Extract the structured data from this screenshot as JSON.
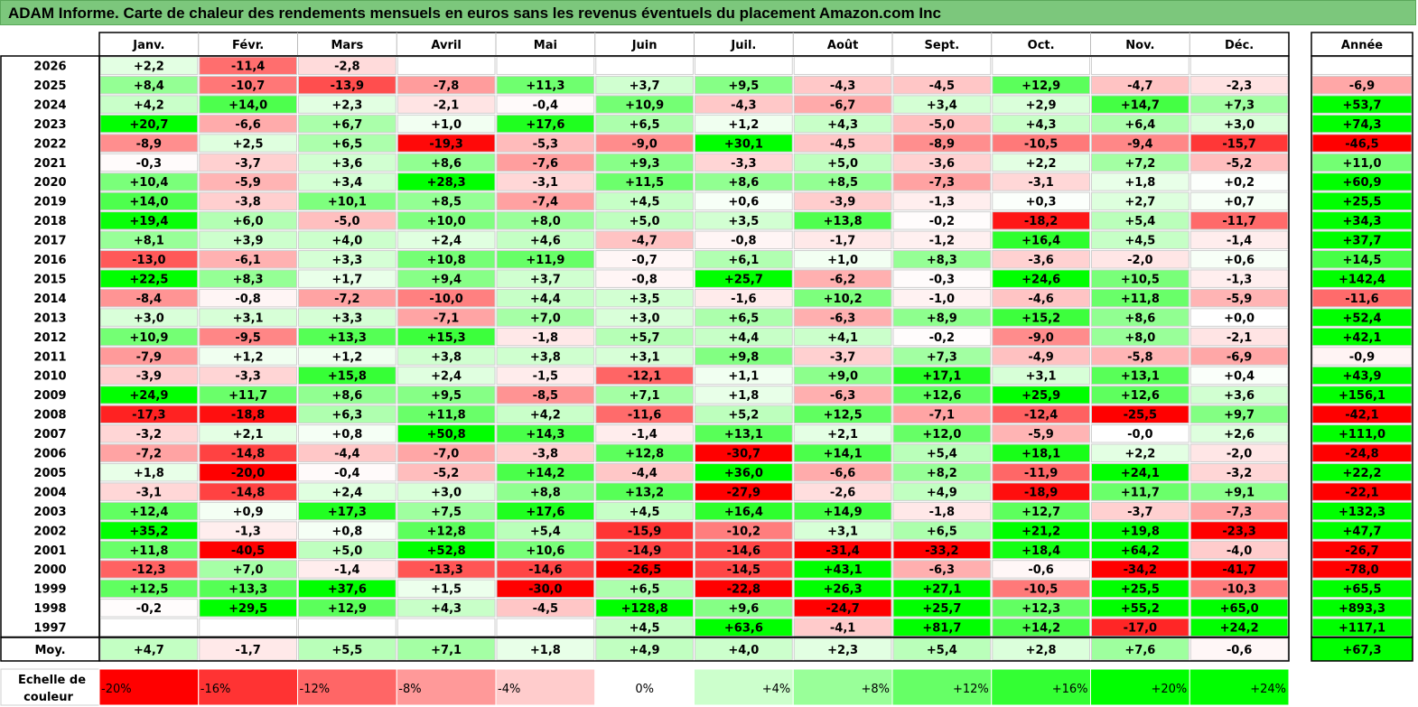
{
  "title": "ADAM Informe. Carte de chaleur des rendements mensuels en euros sans les revenus éventuels du placement Amazon.com Inc",
  "chart_data": {
    "type": "heatmap",
    "months": [
      "Janv.",
      "Févr.",
      "Mars",
      "Avril",
      "Mai",
      "Juin",
      "Juil.",
      "Août",
      "Sept.",
      "Oct.",
      "Nov.",
      "Déc."
    ],
    "year_header": "Année",
    "rows": [
      {
        "label": "2026",
        "values": [
          "+2,2",
          "-11,4",
          "-2,8",
          null,
          null,
          null,
          null,
          null,
          null,
          null,
          null,
          null
        ],
        "year": null
      },
      {
        "label": "2025",
        "values": [
          "+8,4",
          "-10,7",
          "-13,9",
          "-7,8",
          "+11,3",
          "+3,7",
          "+9,5",
          "-4,3",
          "-4,5",
          "+12,9",
          "-4,7",
          "-2,3"
        ],
        "year": "-6,9"
      },
      {
        "label": "2024",
        "values": [
          "+4,2",
          "+14,0",
          "+2,3",
          "-2,1",
          "-0,4",
          "+10,9",
          "-4,3",
          "-6,7",
          "+3,4",
          "+2,9",
          "+14,7",
          "+7,3"
        ],
        "year": "+53,7"
      },
      {
        "label": "2023",
        "values": [
          "+20,7",
          "-6,6",
          "+6,7",
          "+1,0",
          "+17,6",
          "+6,5",
          "+1,2",
          "+4,3",
          "-5,0",
          "+4,3",
          "+6,4",
          "+3,0"
        ],
        "year": "+74,3"
      },
      {
        "label": "2022",
        "values": [
          "-8,9",
          "+2,5",
          "+6,5",
          "-19,3",
          "-5,3",
          "-9,0",
          "+30,1",
          "-4,5",
          "-8,9",
          "-10,5",
          "-9,4",
          "-15,7"
        ],
        "year": "-46,5"
      },
      {
        "label": "2021",
        "values": [
          "-0,3",
          "-3,7",
          "+3,6",
          "+8,6",
          "-7,6",
          "+9,3",
          "-3,3",
          "+5,0",
          "-3,6",
          "+2,2",
          "+7,2",
          "-5,2"
        ],
        "year": "+11,0"
      },
      {
        "label": "2020",
        "values": [
          "+10,4",
          "-5,9",
          "+3,4",
          "+28,3",
          "-3,1",
          "+11,5",
          "+8,6",
          "+8,5",
          "-7,3",
          "-3,1",
          "+1,8",
          "+0,2"
        ],
        "year": "+60,9"
      },
      {
        "label": "2019",
        "values": [
          "+14,0",
          "-3,8",
          "+10,1",
          "+8,5",
          "-7,4",
          "+4,5",
          "+0,6",
          "-3,9",
          "-1,3",
          "+0,3",
          "+2,7",
          "+0,7"
        ],
        "year": "+25,5"
      },
      {
        "label": "2018",
        "values": [
          "+19,4",
          "+6,0",
          "-5,0",
          "+10,0",
          "+8,0",
          "+5,0",
          "+3,5",
          "+13,8",
          "-0,2",
          "-18,2",
          "+5,4",
          "-11,7"
        ],
        "year": "+34,3"
      },
      {
        "label": "2017",
        "values": [
          "+8,1",
          "+3,9",
          "+4,0",
          "+2,4",
          "+4,6",
          "-4,7",
          "-0,8",
          "-1,7",
          "-1,2",
          "+16,4",
          "+4,5",
          "-1,4"
        ],
        "year": "+37,7"
      },
      {
        "label": "2016",
        "values": [
          "-13,0",
          "-6,1",
          "+3,3",
          "+10,8",
          "+11,9",
          "-0,7",
          "+6,1",
          "+1,0",
          "+8,3",
          "-3,6",
          "-2,0",
          "+0,6"
        ],
        "year": "+14,5"
      },
      {
        "label": "2015",
        "values": [
          "+22,5",
          "+8,3",
          "+1,7",
          "+9,4",
          "+3,7",
          "-0,8",
          "+25,7",
          "-6,2",
          "-0,3",
          "+24,6",
          "+10,5",
          "-1,3"
        ],
        "year": "+142,4"
      },
      {
        "label": "2014",
        "values": [
          "-8,4",
          "-0,8",
          "-7,2",
          "-10,0",
          "+4,4",
          "+3,5",
          "-1,6",
          "+10,2",
          "-1,0",
          "-4,6",
          "+11,8",
          "-5,9"
        ],
        "year": "-11,6"
      },
      {
        "label": "2013",
        "values": [
          "+3,0",
          "+3,1",
          "+3,3",
          "-7,1",
          "+7,0",
          "+3,0",
          "+6,5",
          "-6,3",
          "+8,9",
          "+15,2",
          "+8,6",
          "+0,0"
        ],
        "year": "+52,4"
      },
      {
        "label": "2012",
        "values": [
          "+10,9",
          "-9,5",
          "+13,3",
          "+15,3",
          "-1,8",
          "+5,7",
          "+4,4",
          "+4,1",
          "-0,2",
          "-9,0",
          "+8,0",
          "-2,1"
        ],
        "year": "+42,1"
      },
      {
        "label": "2011",
        "values": [
          "-7,9",
          "+1,2",
          "+1,2",
          "+3,8",
          "+3,8",
          "+3,1",
          "+9,8",
          "-3,7",
          "+7,3",
          "-4,9",
          "-5,8",
          "-6,9"
        ],
        "year": "-0,9"
      },
      {
        "label": "2010",
        "values": [
          "-3,9",
          "-3,3",
          "+15,8",
          "+2,4",
          "-1,5",
          "-12,1",
          "+1,1",
          "+9,0",
          "+17,1",
          "+3,1",
          "+13,1",
          "+0,4"
        ],
        "year": "+43,9"
      },
      {
        "label": "2009",
        "values": [
          "+24,9",
          "+11,7",
          "+8,6",
          "+9,5",
          "-8,5",
          "+7,1",
          "+1,8",
          "-6,3",
          "+12,6",
          "+25,9",
          "+12,6",
          "+3,6"
        ],
        "year": "+156,1"
      },
      {
        "label": "2008",
        "values": [
          "-17,3",
          "-18,8",
          "+6,3",
          "+11,8",
          "+4,2",
          "-11,6",
          "+5,2",
          "+12,5",
          "-7,1",
          "-12,4",
          "-25,5",
          "+9,7"
        ],
        "year": "-42,1"
      },
      {
        "label": "2007",
        "values": [
          "-3,2",
          "+2,1",
          "+0,8",
          "+50,8",
          "+14,3",
          "-1,4",
          "+13,1",
          "+2,1",
          "+12,0",
          "-5,9",
          "-0,0",
          "+2,6"
        ],
        "year": "+111,0"
      },
      {
        "label": "2006",
        "values": [
          "-7,2",
          "-14,8",
          "-4,4",
          "-7,0",
          "-3,8",
          "+12,8",
          "-30,7",
          "+14,1",
          "+5,4",
          "+18,1",
          "+2,2",
          "-2,0"
        ],
        "year": "-24,8"
      },
      {
        "label": "2005",
        "values": [
          "+1,8",
          "-20,0",
          "-0,4",
          "-5,2",
          "+14,2",
          "-4,4",
          "+36,0",
          "-6,6",
          "+8,2",
          "-11,9",
          "+24,1",
          "-3,2"
        ],
        "year": "+22,2"
      },
      {
        "label": "2004",
        "values": [
          "-3,1",
          "-14,8",
          "+2,4",
          "+3,0",
          "+8,8",
          "+13,2",
          "-27,9",
          "-2,6",
          "+4,9",
          "-18,9",
          "+11,7",
          "+9,1"
        ],
        "year": "-22,1"
      },
      {
        "label": "2003",
        "values": [
          "+12,4",
          "+0,9",
          "+17,3",
          "+7,5",
          "+17,6",
          "+4,5",
          "+16,4",
          "+14,9",
          "-1,8",
          "+12,7",
          "-3,7",
          "-7,3"
        ],
        "year": "+132,3"
      },
      {
        "label": "2002",
        "values": [
          "+35,2",
          "-1,3",
          "+0,8",
          "+12,8",
          "+5,4",
          "-15,9",
          "-10,2",
          "+3,1",
          "+6,5",
          "+21,2",
          "+19,8",
          "-23,3"
        ],
        "year": "+47,7"
      },
      {
        "label": "2001",
        "values": [
          "+11,8",
          "-40,5",
          "+5,0",
          "+52,8",
          "+10,6",
          "-14,9",
          "-14,6",
          "-31,4",
          "-33,2",
          "+18,4",
          "+64,2",
          "-4,0"
        ],
        "year": "-26,7"
      },
      {
        "label": "2000",
        "values": [
          "-12,3",
          "+7,0",
          "-1,4",
          "-13,3",
          "-14,6",
          "-26,5",
          "-14,5",
          "+43,1",
          "-6,3",
          "-0,6",
          "-34,2",
          "-41,7"
        ],
        "year": "-78,0"
      },
      {
        "label": "1999",
        "values": [
          "+12,5",
          "+13,3",
          "+37,6",
          "+1,5",
          "-30,0",
          "+6,5",
          "-22,8",
          "+26,3",
          "+27,1",
          "-10,5",
          "+25,5",
          "-10,3"
        ],
        "year": "+65,5"
      },
      {
        "label": "1998",
        "values": [
          "-0,2",
          "+29,5",
          "+12,9",
          "+4,3",
          "-4,5",
          "+128,8",
          "+9,6",
          "-24,7",
          "+25,7",
          "+12,3",
          "+55,2",
          "+65,0"
        ],
        "year": "+893,3"
      },
      {
        "label": "1997",
        "values": [
          null,
          null,
          null,
          null,
          null,
          "+4,5",
          "+63,6",
          "-4,1",
          "+81,7",
          "+14,2",
          "-17,0",
          "+24,2"
        ],
        "year": "+117,1"
      }
    ],
    "average": {
      "label": "Moy.",
      "values": [
        "+4,7",
        "-1,7",
        "+5,5",
        "+7,1",
        "+1,8",
        "+4,9",
        "+4,0",
        "+2,3",
        "+5,4",
        "+2,8",
        "+7,6",
        "-0,6"
      ],
      "year": "+67,3"
    },
    "scale": {
      "label_line1": "Echelle de",
      "label_line2": "couleur",
      "items": [
        {
          "text": "-20%",
          "v": -20
        },
        {
          "text": "-16%",
          "v": -16
        },
        {
          "text": "-12%",
          "v": -12
        },
        {
          "text": "-8%",
          "v": -8
        },
        {
          "text": "-4%",
          "v": -4
        },
        {
          "text": "0%",
          "v": 0
        },
        {
          "text": "+4%",
          "v": 4
        },
        {
          "text": "+8%",
          "v": 8
        },
        {
          "text": "+12%",
          "v": 12
        },
        {
          "text": "+16%",
          "v": 16
        },
        {
          "text": "+20%",
          "v": 20
        },
        {
          "text": "+24%",
          "v": 24
        }
      ]
    }
  }
}
